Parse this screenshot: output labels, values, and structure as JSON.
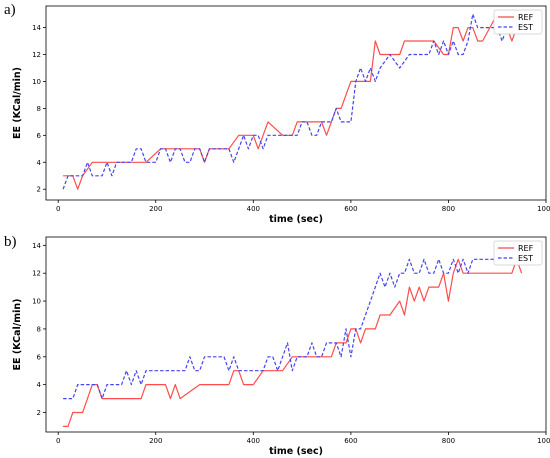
{
  "panels": [
    {
      "panel_label": "a)",
      "legend": {
        "ref": "REF",
        "est": "EST"
      }
    },
    {
      "panel_label": "b)",
      "legend": {
        "ref": "REF",
        "est": "EST"
      }
    }
  ],
  "colors": {
    "ref": "#ff4d4d",
    "est": "#4545ee"
  },
  "chart_data": [
    {
      "type": "line",
      "title": "",
      "xlabel": "time (sec)",
      "ylabel": "EE (KCal/min)",
      "xlim": [
        -25,
        1000
      ],
      "ylim": [
        1.2,
        15.6
      ],
      "xticks": [
        "0",
        "200",
        "400",
        "600",
        "800",
        "1000"
      ],
      "yticks": [
        "2",
        "4",
        "6",
        "8",
        "10",
        "12",
        "14"
      ],
      "grid": false,
      "legend_position": "top-right",
      "series": [
        {
          "name": "REF",
          "style": "solid",
          "x": [
            10,
            30,
            40,
            50,
            70,
            100,
            140,
            180,
            210,
            250,
            290,
            300,
            310,
            350,
            370,
            400,
            410,
            420,
            430,
            460,
            480,
            490,
            500,
            510,
            540,
            550,
            560,
            570,
            580,
            590,
            600,
            620,
            640,
            650,
            660,
            690,
            700,
            710,
            740,
            770,
            790,
            800,
            810,
            820,
            830,
            840,
            850,
            860,
            870,
            900,
            910,
            920,
            930,
            940
          ],
          "y": [
            3,
            3,
            2,
            3,
            4,
            4,
            4,
            4,
            5,
            5,
            5,
            4,
            5,
            5,
            6,
            6,
            5,
            6,
            7,
            6,
            6,
            7,
            7,
            7,
            7,
            6,
            7,
            8,
            8,
            9,
            10,
            10,
            10,
            13,
            12,
            12,
            12,
            13,
            13,
            13,
            12,
            12,
            14,
            14,
            13,
            14,
            14,
            13,
            13,
            15,
            14,
            14,
            13,
            14
          ]
        },
        {
          "name": "EST",
          "style": "dashed",
          "x": [
            10,
            20,
            30,
            50,
            60,
            70,
            80,
            90,
            100,
            110,
            120,
            130,
            140,
            150,
            160,
            170,
            180,
            190,
            200,
            210,
            220,
            230,
            240,
            250,
            260,
            270,
            280,
            290,
            300,
            310,
            320,
            330,
            340,
            350,
            360,
            370,
            380,
            390,
            400,
            410,
            420,
            430,
            440,
            460,
            480,
            490,
            500,
            510,
            520,
            530,
            540,
            560,
            570,
            580,
            600,
            610,
            620,
            630,
            640,
            650,
            660,
            680,
            700,
            720,
            730,
            740,
            760,
            770,
            780,
            790,
            800,
            810,
            820,
            830,
            840,
            850,
            860,
            870,
            880,
            890,
            900,
            910,
            920,
            930,
            940
          ],
          "y": [
            2,
            3,
            3,
            3,
            4,
            3,
            3,
            3,
            4,
            3,
            4,
            4,
            4,
            4,
            5,
            5,
            4,
            4,
            4,
            5,
            5,
            4,
            5,
            5,
            4,
            4,
            5,
            5,
            4,
            5,
            5,
            5,
            5,
            5,
            4,
            5,
            6,
            5,
            6,
            6,
            5,
            6,
            6,
            6,
            6,
            6,
            7,
            7,
            6,
            6,
            7,
            7,
            8,
            7,
            7,
            10,
            11,
            10,
            11,
            10,
            11,
            12,
            11,
            12,
            12,
            12,
            12,
            13,
            12,
            13,
            12,
            13,
            12,
            12,
            13,
            15,
            14,
            14,
            14,
            14,
            14,
            13,
            14,
            14,
            14
          ]
        }
      ]
    },
    {
      "type": "line",
      "title": "",
      "xlabel": "time (sec)",
      "ylabel": "EE (KCal/min)",
      "xlim": [
        -25,
        1000
      ],
      "ylim": [
        0.6,
        14.6
      ],
      "xticks": [
        "0",
        "200",
        "400",
        "600",
        "800",
        "1000"
      ],
      "yticks": [
        "2",
        "4",
        "6",
        "8",
        "10",
        "12",
        "14"
      ],
      "grid": false,
      "legend_position": "top-right",
      "series": [
        {
          "name": "REF",
          "style": "solid",
          "x": [
            10,
            20,
            30,
            50,
            60,
            70,
            80,
            90,
            100,
            110,
            120,
            140,
            150,
            160,
            170,
            180,
            200,
            210,
            220,
            230,
            240,
            250,
            290,
            300,
            310,
            320,
            330,
            340,
            350,
            360,
            370,
            380,
            390,
            400,
            420,
            450,
            460,
            480,
            490,
            500,
            520,
            540,
            560,
            570,
            580,
            590,
            600,
            610,
            620,
            630,
            640,
            650,
            660,
            680,
            700,
            710,
            720,
            730,
            740,
            750,
            760,
            770,
            780,
            790,
            800,
            810,
            820,
            830,
            840,
            850,
            860,
            880,
            900,
            910,
            920,
            930,
            940,
            950
          ],
          "y": [
            1,
            1,
            2,
            2,
            3,
            4,
            4,
            3,
            3,
            3,
            3,
            3,
            3,
            3,
            3,
            4,
            4,
            4,
            4,
            3,
            4,
            3,
            4,
            4,
            4,
            4,
            4,
            4,
            4,
            5,
            5,
            4,
            4,
            4,
            5,
            5,
            5,
            6,
            6,
            6,
            6,
            6,
            6,
            7,
            7,
            7,
            8,
            8,
            7,
            8,
            8,
            8,
            9,
            9,
            10,
            9,
            11,
            10,
            11,
            10,
            11,
            11,
            11,
            12,
            10,
            12,
            13,
            12,
            12,
            12,
            12,
            12,
            12,
            12,
            12,
            12,
            13,
            12
          ]
        },
        {
          "name": "EST",
          "style": "dashed",
          "x": [
            10,
            20,
            30,
            40,
            50,
            60,
            70,
            80,
            90,
            100,
            110,
            120,
            130,
            140,
            150,
            160,
            170,
            180,
            190,
            200,
            210,
            220,
            230,
            240,
            250,
            260,
            270,
            280,
            290,
            300,
            310,
            320,
            330,
            340,
            350,
            360,
            370,
            380,
            390,
            400,
            410,
            420,
            430,
            440,
            450,
            460,
            470,
            480,
            490,
            500,
            510,
            520,
            530,
            540,
            550,
            560,
            570,
            580,
            590,
            600,
            610,
            620,
            630,
            640,
            650,
            660,
            670,
            680,
            690,
            700,
            710,
            720,
            730,
            740,
            750,
            760,
            770,
            780,
            790,
            800,
            810,
            820,
            830,
            840,
            850,
            860,
            870,
            880,
            890,
            900,
            910,
            920,
            930,
            940,
            950
          ],
          "y": [
            3,
            3,
            3,
            4,
            4,
            4,
            4,
            4,
            3,
            4,
            4,
            4,
            4,
            5,
            4,
            5,
            4,
            5,
            5,
            5,
            5,
            5,
            5,
            5,
            5,
            5,
            6,
            5,
            5,
            6,
            6,
            6,
            6,
            6,
            5,
            6,
            5,
            5,
            5,
            5,
            5,
            5,
            6,
            6,
            5,
            6,
            7,
            5,
            6,
            6,
            6,
            7,
            6,
            6,
            7,
            7,
            7,
            6,
            8,
            6,
            8,
            8,
            9,
            10,
            11,
            12,
            11,
            12,
            11,
            12,
            12,
            13,
            12,
            12,
            13,
            12,
            12,
            13,
            12,
            12,
            13,
            12,
            13,
            12,
            13,
            13,
            13,
            13,
            13,
            13,
            13,
            13,
            13,
            13,
            13
          ]
        }
      ]
    }
  ]
}
